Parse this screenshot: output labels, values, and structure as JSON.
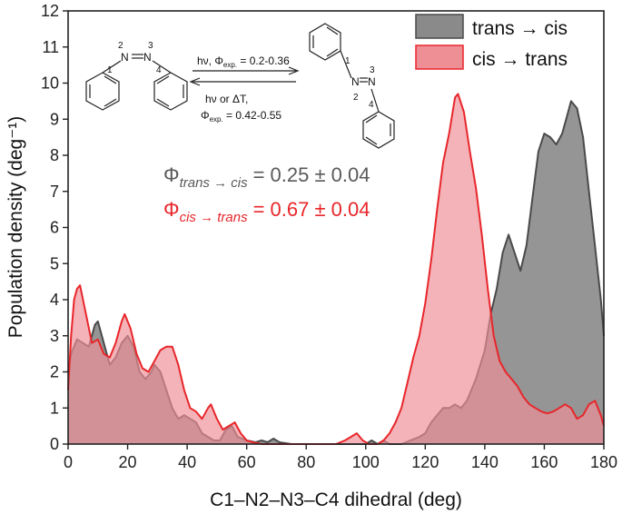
{
  "chart_data": {
    "type": "area",
    "xlabel": "C1–N2–N3–C4 dihedral (deg)",
    "ylabel": "Population density (deg⁻¹)",
    "xlim": [
      0,
      180
    ],
    "ylim": [
      0,
      12
    ],
    "xticks": [
      0,
      20,
      40,
      60,
      80,
      100,
      120,
      140,
      160,
      180
    ],
    "yticks": [
      0,
      1,
      2,
      3,
      4,
      5,
      6,
      7,
      8,
      9,
      10,
      11,
      12
    ],
    "legend": {
      "placement": "top-right"
    },
    "series": [
      {
        "name": "trans → cis",
        "color_fill": "#8a8a8a",
        "color_line": "#4a4a4a",
        "points": [
          [
            0,
            2.0
          ],
          [
            1,
            2.5
          ],
          [
            3,
            2.9
          ],
          [
            5,
            2.8
          ],
          [
            7,
            2.7
          ],
          [
            9,
            3.3
          ],
          [
            10,
            3.4
          ],
          [
            12,
            2.8
          ],
          [
            14,
            2.2
          ],
          [
            16,
            2.4
          ],
          [
            18,
            2.8
          ],
          [
            20,
            3.0
          ],
          [
            22,
            2.7
          ],
          [
            24,
            2.0
          ],
          [
            26,
            1.8
          ],
          [
            28,
            2.0
          ],
          [
            29,
            2.2
          ],
          [
            31,
            2.0
          ],
          [
            33,
            1.5
          ],
          [
            35,
            1.0
          ],
          [
            37,
            0.7
          ],
          [
            39,
            0.8
          ],
          [
            41,
            0.7
          ],
          [
            43,
            0.6
          ],
          [
            45,
            0.3
          ],
          [
            47,
            0.2
          ],
          [
            49,
            0.1
          ],
          [
            51,
            0.1
          ],
          [
            53,
            0.4
          ],
          [
            55,
            0.5
          ],
          [
            57,
            0.2
          ],
          [
            60,
            0.1
          ],
          [
            63,
            0.05
          ],
          [
            65,
            0.1
          ],
          [
            67,
            0.05
          ],
          [
            69,
            0.15
          ],
          [
            71,
            0.05
          ],
          [
            75,
            0.0
          ],
          [
            85,
            0.0
          ],
          [
            100,
            0.0
          ],
          [
            102,
            0.1
          ],
          [
            104,
            0.0
          ],
          [
            106,
            0.1
          ],
          [
            108,
            0.0
          ],
          [
            112,
            0.0
          ],
          [
            118,
            0.2
          ],
          [
            120,
            0.3
          ],
          [
            122,
            0.6
          ],
          [
            124,
            0.8
          ],
          [
            126,
            1.0
          ],
          [
            128,
            1.0
          ],
          [
            130,
            1.1
          ],
          [
            132,
            1.0
          ],
          [
            134,
            1.2
          ],
          [
            137,
            1.8
          ],
          [
            140,
            2.6
          ],
          [
            142,
            3.6
          ],
          [
            144,
            4.3
          ],
          [
            146,
            5.3
          ],
          [
            148,
            5.8
          ],
          [
            150,
            5.3
          ],
          [
            152,
            4.8
          ],
          [
            154,
            5.5
          ],
          [
            156,
            6.8
          ],
          [
            158,
            8.1
          ],
          [
            160,
            8.6
          ],
          [
            162,
            8.5
          ],
          [
            164,
            8.3
          ],
          [
            166,
            8.6
          ],
          [
            168,
            9.2
          ],
          [
            169,
            9.5
          ],
          [
            171,
            9.3
          ],
          [
            173,
            8.5
          ],
          [
            175,
            7.0
          ],
          [
            177,
            5.5
          ],
          [
            179,
            4.0
          ],
          [
            180,
            3.0
          ]
        ]
      },
      {
        "name": "cis → trans",
        "color_fill": "#ee8f96",
        "color_line": "#e8262b",
        "points": [
          [
            0,
            1.5
          ],
          [
            1,
            3.0
          ],
          [
            2,
            4.0
          ],
          [
            3,
            4.3
          ],
          [
            4,
            4.4
          ],
          [
            6,
            3.6
          ],
          [
            8,
            2.8
          ],
          [
            10,
            2.9
          ],
          [
            12,
            2.5
          ],
          [
            14,
            2.4
          ],
          [
            16,
            2.8
          ],
          [
            18,
            3.4
          ],
          [
            19,
            3.6
          ],
          [
            21,
            3.2
          ],
          [
            23,
            2.5
          ],
          [
            25,
            2.1
          ],
          [
            27,
            2.0
          ],
          [
            29,
            2.3
          ],
          [
            31,
            2.6
          ],
          [
            33,
            2.7
          ],
          [
            35,
            2.7
          ],
          [
            37,
            2.2
          ],
          [
            39,
            1.5
          ],
          [
            41,
            1.0
          ],
          [
            43,
            0.9
          ],
          [
            45,
            0.7
          ],
          [
            47,
            1.0
          ],
          [
            48,
            1.1
          ],
          [
            50,
            0.7
          ],
          [
            52,
            0.4
          ],
          [
            54,
            0.5
          ],
          [
            56,
            0.6
          ],
          [
            58,
            0.3
          ],
          [
            60,
            0.1
          ],
          [
            62,
            0.05
          ],
          [
            65,
            0.0
          ],
          [
            90,
            0.0
          ],
          [
            93,
            0.1
          ],
          [
            95,
            0.2
          ],
          [
            97,
            0.3
          ],
          [
            99,
            0.1
          ],
          [
            101,
            0.0
          ],
          [
            104,
            0.0
          ],
          [
            106,
            0.1
          ],
          [
            108,
            0.3
          ],
          [
            110,
            0.6
          ],
          [
            112,
            1.0
          ],
          [
            114,
            1.7
          ],
          [
            116,
            2.4
          ],
          [
            118,
            3.0
          ],
          [
            120,
            3.9
          ],
          [
            122,
            5.1
          ],
          [
            124,
            6.5
          ],
          [
            126,
            7.8
          ],
          [
            128,
            8.6
          ],
          [
            130,
            9.6
          ],
          [
            131,
            9.7
          ],
          [
            133,
            9.2
          ],
          [
            135,
            8.1
          ],
          [
            137,
            7.1
          ],
          [
            139,
            5.8
          ],
          [
            141,
            4.3
          ],
          [
            143,
            3.0
          ],
          [
            145,
            2.3
          ],
          [
            147,
            2.0
          ],
          [
            149,
            1.8
          ],
          [
            151,
            1.6
          ],
          [
            153,
            1.3
          ],
          [
            155,
            1.1
          ],
          [
            157,
            1.0
          ],
          [
            159,
            0.9
          ],
          [
            161,
            0.85
          ],
          [
            163,
            0.9
          ],
          [
            165,
            1.0
          ],
          [
            167,
            1.1
          ],
          [
            169,
            1.0
          ],
          [
            171,
            0.7
          ],
          [
            173,
            0.8
          ],
          [
            175,
            1.1
          ],
          [
            177,
            1.2
          ],
          [
            179,
            0.8
          ],
          [
            180,
            0.5
          ]
        ]
      }
    ],
    "annotations": {
      "yield_trans_cis": {
        "symbol": "Φ",
        "subscript": "trans → cis",
        "value": "= 0.25 ± 0.04"
      },
      "yield_cis_trans": {
        "symbol": "Φ",
        "subscript": "cis → trans",
        "value": "= 0.67 ± 0.04"
      }
    },
    "scheme": {
      "forward": {
        "prefix": "hν, Φ",
        "sub": "exp.",
        "suffix": " = 0.2-0.36"
      },
      "backward_line1": "hν or ΔT,",
      "backward_line2": {
        "prefix": "Φ",
        "sub": "exp.",
        "suffix": " = 0.42-0.55"
      },
      "atom_N": "N",
      "atom_numbers": [
        "1",
        "2",
        "3",
        "4"
      ]
    }
  }
}
